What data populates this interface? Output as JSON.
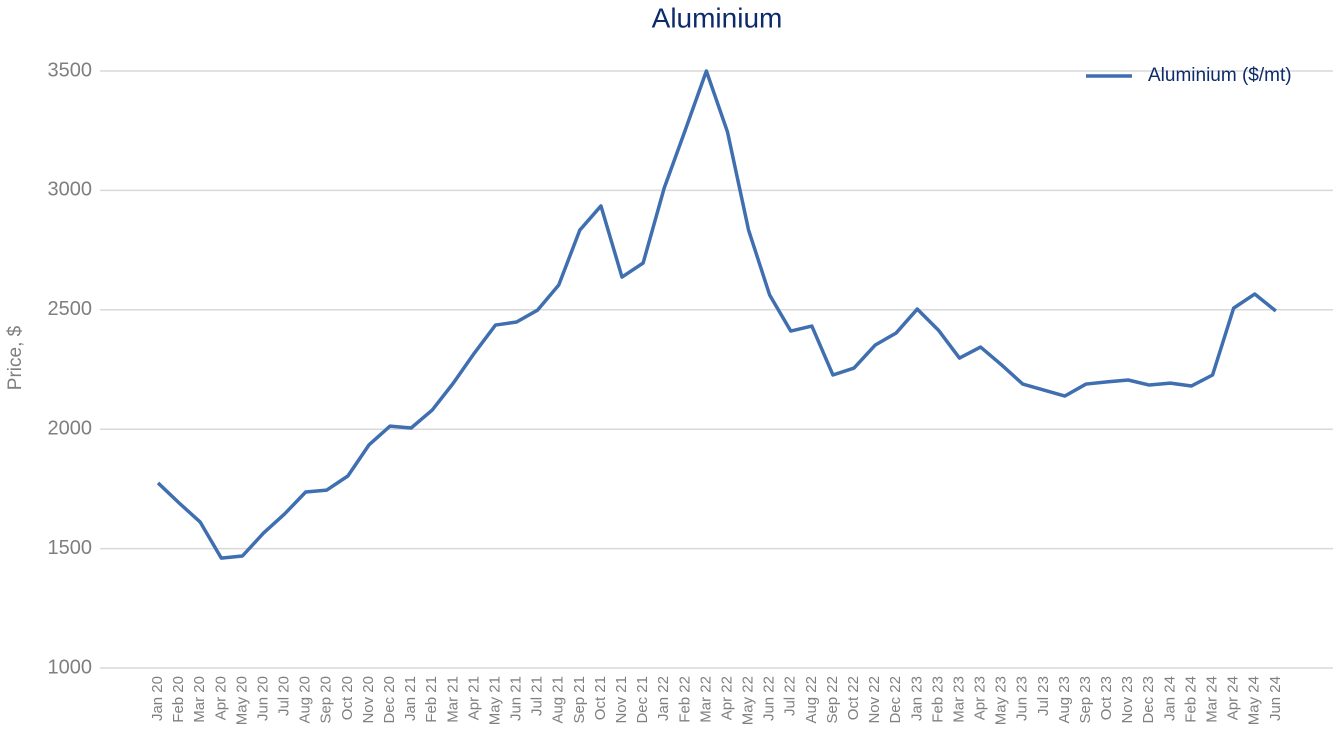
{
  "chart_data": {
    "type": "line",
    "title": "Aluminium",
    "y_label": "Price, $",
    "categories": [
      "Jan 20",
      "Feb 20",
      "Mar 20",
      "Apr 20",
      "May 20",
      "Jun 20",
      "Jul 20",
      "Aug 20",
      "Sep 20",
      "Oct 20",
      "Nov 20",
      "Dec 20",
      "Jan 21",
      "Feb 21",
      "Mar 21",
      "Apr 21",
      "May 21",
      "Jun 21",
      "Jul 21",
      "Aug 21",
      "Sep 21",
      "Oct 21",
      "Nov 21",
      "Dec 21",
      "Jan 22",
      "Feb 22",
      "Mar 22",
      "Apr 22",
      "May 22",
      "Jun 22",
      "Jul 22",
      "Aug 22",
      "Sep 22",
      "Oct 22",
      "Nov 22",
      "Dec 22",
      "Jan 23",
      "Feb 23",
      "Mar 23",
      "Apr 23",
      "May 23",
      "Jun 23",
      "Jul 23",
      "Aug 23",
      "Sep 23",
      "Oct 23",
      "Nov 23",
      "Dec 23",
      "Jan 24",
      "Feb 24",
      "Mar 24",
      "Apr 24",
      "May 24",
      "Jun 24"
    ],
    "series": [
      {
        "name": "Aluminium ($/mt)",
        "color": "#3f6fb0",
        "values": [
          1775,
          1691,
          1611,
          1460,
          1469,
          1565,
          1645,
          1737,
          1745,
          1804,
          1934,
          2013,
          2005,
          2080,
          2193,
          2319,
          2436,
          2449,
          2499,
          2604,
          2834,
          2935,
          2637,
          2696,
          3010,
          3253,
          3500,
          3245,
          2834,
          2562,
          2411,
          2432,
          2227,
          2256,
          2352,
          2403,
          2503,
          2415,
          2298,
          2344,
          2269,
          2189,
          2164,
          2139,
          2189,
          2198,
          2206,
          2185,
          2193,
          2181,
          2227,
          2507,
          2566,
          2495
        ]
      }
    ],
    "ylim": [
      1000,
      3500
    ],
    "yticks": [
      1000,
      1500,
      2000,
      2500,
      3000,
      3500
    ],
    "grid": true,
    "legend": "top-right"
  }
}
